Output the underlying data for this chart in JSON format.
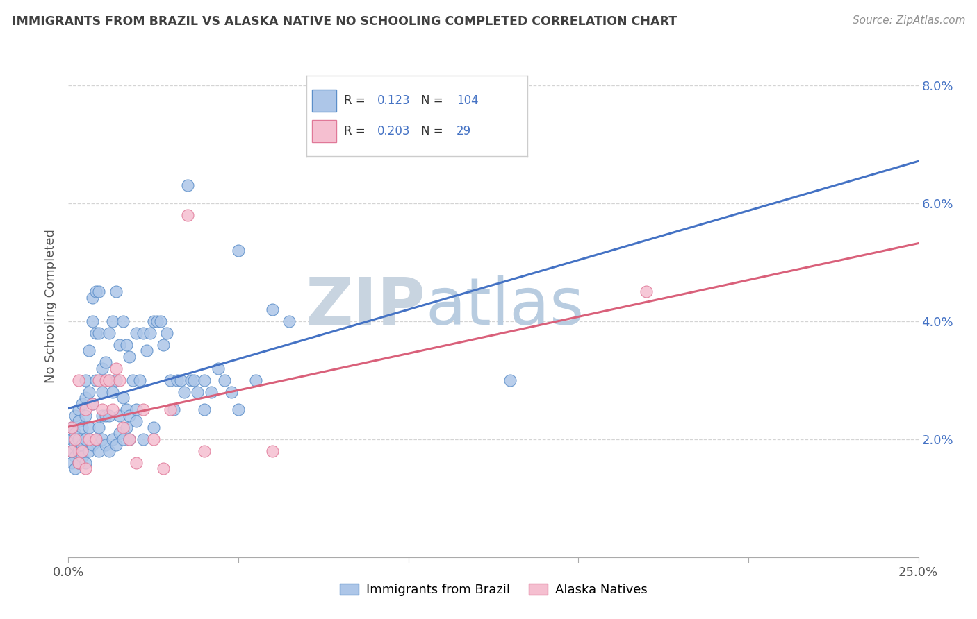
{
  "title": "IMMIGRANTS FROM BRAZIL VS ALASKA NATIVE NO SCHOOLING COMPLETED CORRELATION CHART",
  "source": "Source: ZipAtlas.com",
  "ylabel": "No Schooling Completed",
  "xmin": 0.0,
  "xmax": 0.25,
  "ymin": 0.0,
  "ymax": 0.085,
  "yticks": [
    0.02,
    0.04,
    0.06,
    0.08
  ],
  "ytick_labels": [
    "2.0%",
    "4.0%",
    "6.0%",
    "8.0%"
  ],
  "xticks": [
    0.0,
    0.05,
    0.1,
    0.15,
    0.2,
    0.25
  ],
  "legend_r_blue": "0.123",
  "legend_n_blue": "104",
  "legend_r_pink": "0.203",
  "legend_n_pink": "29",
  "blue_fill": "#adc6e8",
  "blue_edge": "#5b8ec9",
  "pink_fill": "#f5bfd0",
  "pink_edge": "#e07898",
  "blue_line_color": "#4472c4",
  "pink_line_color": "#d9607a",
  "title_color": "#404040",
  "source_color": "#909090",
  "grid_color": "#d0d0d0",
  "watermark_zip_color": "#c0cfe0",
  "watermark_atlas_color": "#b0c8e0",
  "blue_x": [
    0.001,
    0.001,
    0.001,
    0.002,
    0.002,
    0.002,
    0.002,
    0.003,
    0.003,
    0.003,
    0.003,
    0.004,
    0.004,
    0.004,
    0.005,
    0.005,
    0.005,
    0.005,
    0.006,
    0.006,
    0.006,
    0.007,
    0.007,
    0.007,
    0.008,
    0.008,
    0.008,
    0.009,
    0.009,
    0.009,
    0.01,
    0.01,
    0.01,
    0.011,
    0.011,
    0.012,
    0.012,
    0.012,
    0.013,
    0.013,
    0.014,
    0.014,
    0.015,
    0.015,
    0.016,
    0.016,
    0.017,
    0.017,
    0.018,
    0.018,
    0.019,
    0.02,
    0.02,
    0.021,
    0.022,
    0.023,
    0.024,
    0.025,
    0.026,
    0.027,
    0.028,
    0.029,
    0.03,
    0.031,
    0.032,
    0.033,
    0.034,
    0.035,
    0.036,
    0.037,
    0.038,
    0.04,
    0.042,
    0.044,
    0.046,
    0.048,
    0.05,
    0.055,
    0.06,
    0.065,
    0.001,
    0.002,
    0.003,
    0.004,
    0.005,
    0.006,
    0.007,
    0.008,
    0.009,
    0.01,
    0.011,
    0.012,
    0.013,
    0.014,
    0.015,
    0.016,
    0.017,
    0.018,
    0.02,
    0.022,
    0.025,
    0.04,
    0.05,
    0.13
  ],
  "blue_y": [
    0.02,
    0.022,
    0.018,
    0.024,
    0.019,
    0.021,
    0.017,
    0.025,
    0.023,
    0.02,
    0.018,
    0.026,
    0.022,
    0.019,
    0.03,
    0.027,
    0.024,
    0.02,
    0.035,
    0.028,
    0.022,
    0.044,
    0.04,
    0.026,
    0.045,
    0.038,
    0.03,
    0.045,
    0.038,
    0.022,
    0.032,
    0.028,
    0.024,
    0.033,
    0.024,
    0.038,
    0.03,
    0.024,
    0.04,
    0.028,
    0.045,
    0.03,
    0.036,
    0.024,
    0.04,
    0.027,
    0.036,
    0.025,
    0.034,
    0.024,
    0.03,
    0.038,
    0.025,
    0.03,
    0.038,
    0.035,
    0.038,
    0.04,
    0.04,
    0.04,
    0.036,
    0.038,
    0.03,
    0.025,
    0.03,
    0.03,
    0.028,
    0.063,
    0.03,
    0.03,
    0.028,
    0.03,
    0.028,
    0.032,
    0.03,
    0.028,
    0.052,
    0.03,
    0.042,
    0.04,
    0.016,
    0.015,
    0.016,
    0.017,
    0.016,
    0.018,
    0.019,
    0.02,
    0.018,
    0.02,
    0.019,
    0.018,
    0.02,
    0.019,
    0.021,
    0.02,
    0.022,
    0.02,
    0.023,
    0.02,
    0.022,
    0.025,
    0.025,
    0.03
  ],
  "pink_x": [
    0.001,
    0.001,
    0.002,
    0.003,
    0.003,
    0.004,
    0.005,
    0.005,
    0.006,
    0.007,
    0.008,
    0.009,
    0.01,
    0.011,
    0.012,
    0.013,
    0.014,
    0.015,
    0.016,
    0.018,
    0.02,
    0.022,
    0.025,
    0.028,
    0.03,
    0.035,
    0.04,
    0.06,
    0.17
  ],
  "pink_y": [
    0.022,
    0.018,
    0.02,
    0.03,
    0.016,
    0.018,
    0.025,
    0.015,
    0.02,
    0.026,
    0.02,
    0.03,
    0.025,
    0.03,
    0.03,
    0.025,
    0.032,
    0.03,
    0.022,
    0.02,
    0.016,
    0.025,
    0.02,
    0.015,
    0.025,
    0.058,
    0.018,
    0.018,
    0.045
  ]
}
